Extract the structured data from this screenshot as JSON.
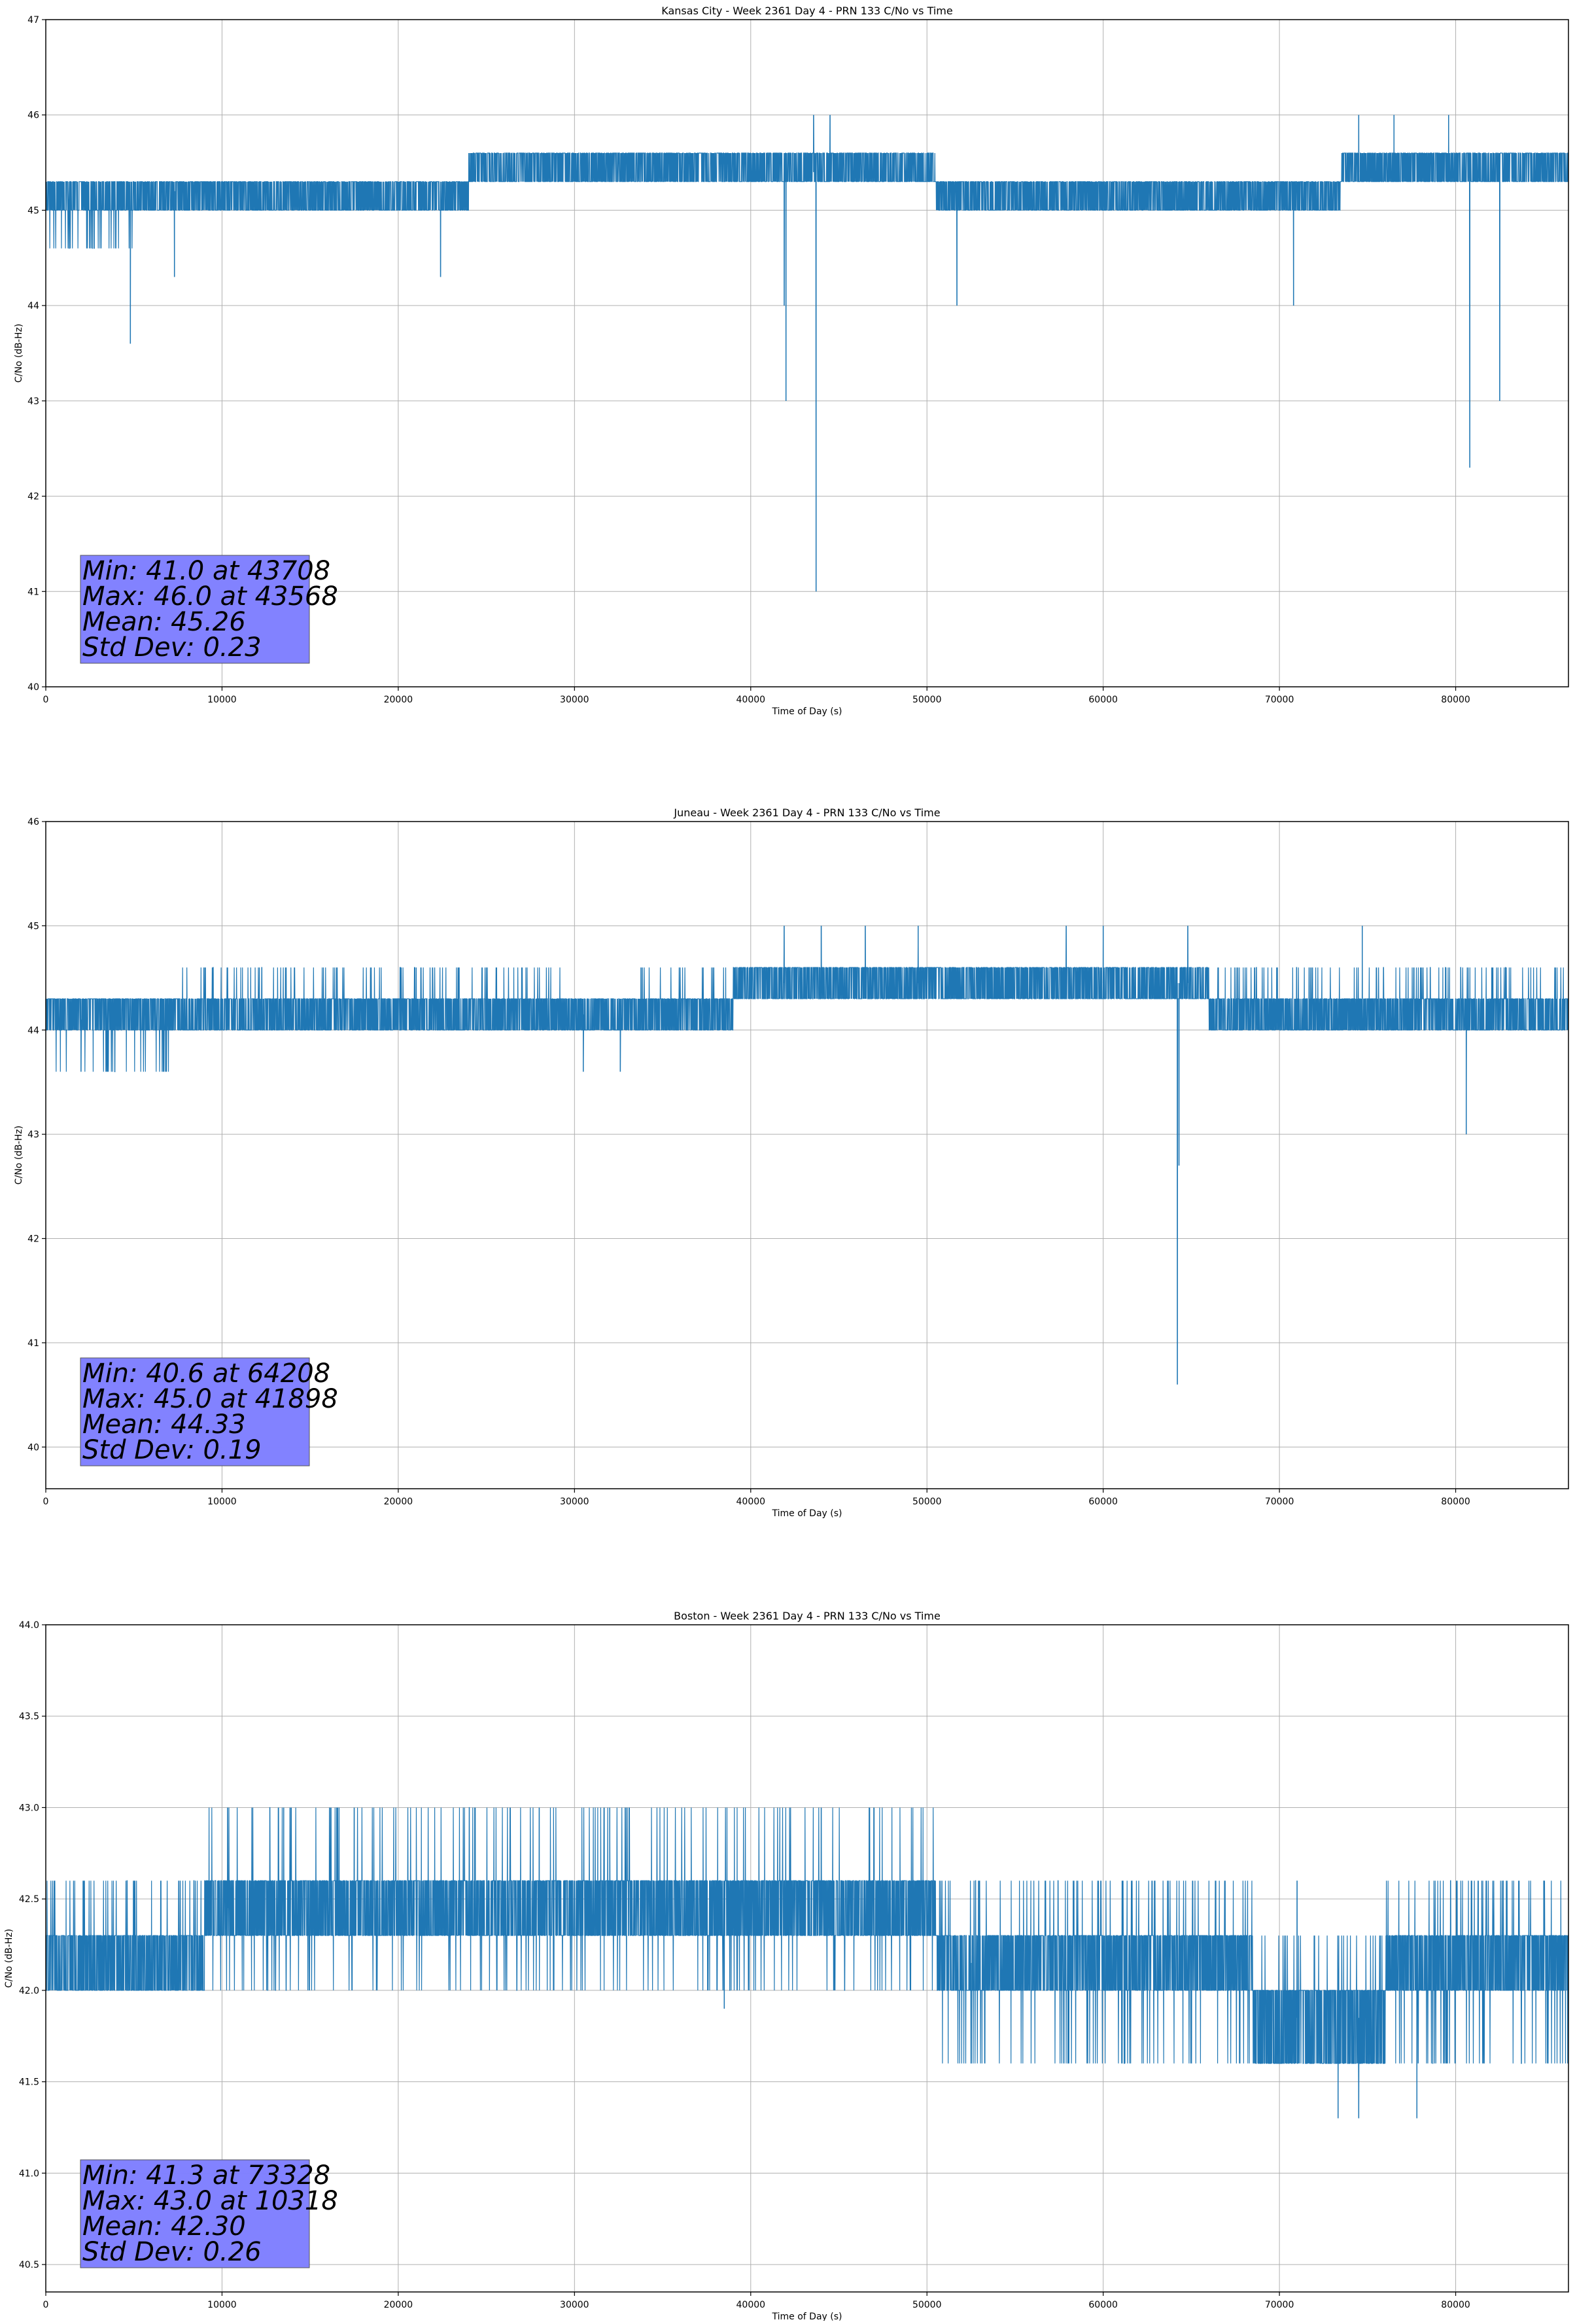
{
  "colors": {
    "series": "#1f77b4",
    "grid": "#b0b0b0",
    "stats_box": "#8080ff",
    "axes": "#000000"
  },
  "chart_data": [
    {
      "type": "line",
      "title": "Kansas City - Week 2361 Day 4 - PRN 133 C/No vs Time",
      "xlabel": "Time of Day (s)",
      "ylabel": "C/No (dB-Hz)",
      "xlim": [
        0,
        86400
      ],
      "ylim": [
        40,
        47
      ],
      "xticks": [
        0,
        10000,
        20000,
        30000,
        40000,
        50000,
        60000,
        70000,
        80000
      ],
      "yticks": [
        40,
        41,
        42,
        43,
        44,
        45,
        46,
        47
      ],
      "ytick_labels": [
        "40",
        "41",
        "42",
        "43",
        "44",
        "45",
        "46",
        "47"
      ],
      "grid": true,
      "series": [
        {
          "name": "PRN 133",
          "quantization": 0.3,
          "segments": [
            {
              "x0": 0,
              "x1": 5000,
              "base": 45.0,
              "levels": [
                44.6,
                45.0,
                45.3
              ]
            },
            {
              "x0": 5000,
              "x1": 24000,
              "base": 45.2,
              "levels": [
                45.0,
                45.3
              ]
            },
            {
              "x0": 24000,
              "x1": 50500,
              "base": 45.4,
              "levels": [
                45.3,
                45.6
              ]
            },
            {
              "x0": 50500,
              "x1": 73500,
              "base": 45.2,
              "levels": [
                45.0,
                45.3
              ]
            },
            {
              "x0": 73500,
              "x1": 86400,
              "base": 45.4,
              "levels": [
                45.3,
                45.6
              ]
            }
          ],
          "spikes": [
            [
              4800,
              43.6
            ],
            [
              7300,
              44.3
            ],
            [
              22400,
              44.3
            ],
            [
              42000,
              43.0
            ],
            [
              41900,
              44.0
            ],
            [
              43708,
              41.0
            ],
            [
              43568,
              46.0
            ],
            [
              44500,
              46.0
            ],
            [
              51700,
              44.0
            ],
            [
              70800,
              44.0
            ],
            [
              74500,
              46.0
            ],
            [
              76500,
              46.0
            ],
            [
              80800,
              42.3
            ],
            [
              82500,
              43.0
            ],
            [
              79600,
              46.0
            ]
          ]
        }
      ],
      "stats": {
        "min": "Min: 41.0 at 43708",
        "max": "Max: 46.0 at 43568",
        "mean": "Mean: 45.26",
        "std": "Std Dev: 0.23"
      },
      "legend": "none"
    },
    {
      "type": "line",
      "title": "Juneau - Week 2361 Day 4 - PRN 133 C/No vs Time",
      "xlabel": "Time of Day (s)",
      "ylabel": "C/No (dB-Hz)",
      "xlim": [
        0,
        86400
      ],
      "ylim": [
        39.6,
        46
      ],
      "xticks": [
        0,
        10000,
        20000,
        30000,
        40000,
        50000,
        60000,
        70000,
        80000
      ],
      "yticks": [
        40,
        41,
        42,
        43,
        44,
        45,
        46
      ],
      "ytick_labels": [
        "40",
        "41",
        "42",
        "43",
        "44",
        "45",
        "46"
      ],
      "grid": true,
      "series": [
        {
          "name": "PRN 133",
          "quantization": 0.3,
          "segments": [
            {
              "x0": 0,
              "x1": 7000,
              "base": 44.1,
              "levels": [
                43.6,
                44.0,
                44.3
              ]
            },
            {
              "x0": 7000,
              "x1": 29500,
              "base": 44.2,
              "levels": [
                44.0,
                44.3,
                44.6
              ]
            },
            {
              "x0": 29500,
              "x1": 33000,
              "base": 44.15,
              "levels": [
                44.0,
                44.3
              ]
            },
            {
              "x0": 33000,
              "x1": 39000,
              "base": 44.25,
              "levels": [
                44.0,
                44.3,
                44.6
              ]
            },
            {
              "x0": 39000,
              "x1": 66000,
              "base": 44.45,
              "levels": [
                44.3,
                44.6
              ]
            },
            {
              "x0": 66000,
              "x1": 86400,
              "base": 44.3,
              "levels": [
                44.0,
                44.3,
                44.6
              ]
            }
          ],
          "spikes": [
            [
              2000,
              43.6
            ],
            [
              6800,
              43.6
            ],
            [
              30500,
              43.6
            ],
            [
              32600,
              43.6
            ],
            [
              41898,
              45.0
            ],
            [
              44000,
              45.0
            ],
            [
              46500,
              45.0
            ],
            [
              49500,
              45.0
            ],
            [
              57900,
              45.0
            ],
            [
              60000,
              45.0
            ],
            [
              64208,
              40.6
            ],
            [
              64300,
              42.7
            ],
            [
              64800,
              45.0
            ],
            [
              74700,
              45.0
            ],
            [
              80600,
              43.0
            ]
          ]
        }
      ],
      "stats": {
        "min": "Min: 40.6 at 64208",
        "max": "Max: 45.0 at 41898",
        "mean": "Mean: 44.33",
        "std": "Std Dev: 0.19"
      },
      "legend": "none"
    },
    {
      "type": "line",
      "title": "Boston - Week 2361 Day 4 - PRN 133 C/No vs Time",
      "xlabel": "Time of Day (s)",
      "ylabel": "C/No (dB-Hz)",
      "xlim": [
        0,
        86400
      ],
      "ylim": [
        40.35,
        44.0
      ],
      "xticks": [
        0,
        10000,
        20000,
        30000,
        40000,
        50000,
        60000,
        70000,
        80000
      ],
      "yticks": [
        40.5,
        41.0,
        41.5,
        42.0,
        42.5,
        43.0,
        43.5,
        44.0
      ],
      "ytick_labels": [
        "40.5",
        "41.0",
        "41.5",
        "42.0",
        "42.5",
        "43.0",
        "43.5",
        "44.0"
      ],
      "grid": true,
      "series": [
        {
          "name": "PRN 133",
          "quantization": 0.3,
          "segments": [
            {
              "x0": 0,
              "x1": 9000,
              "base": 42.15,
              "levels": [
                42.0,
                42.3,
                42.6
              ]
            },
            {
              "x0": 9000,
              "x1": 50500,
              "base": 42.45,
              "levels": [
                42.0,
                42.3,
                42.6,
                43.0
              ]
            },
            {
              "x0": 50500,
              "x1": 68500,
              "base": 42.15,
              "levels": [
                41.6,
                42.0,
                42.3,
                42.6
              ]
            },
            {
              "x0": 68500,
              "x1": 76000,
              "base": 41.85,
              "levels": [
                41.6,
                42.0,
                42.3
              ]
            },
            {
              "x0": 76000,
              "x1": 86400,
              "base": 42.15,
              "levels": [
                41.6,
                42.0,
                42.3,
                42.6
              ]
            }
          ],
          "spikes": [
            [
              10318,
              43.0
            ],
            [
              13500,
              43.0
            ],
            [
              17500,
              43.0
            ],
            [
              28000,
              43.0
            ],
            [
              32000,
              43.0
            ],
            [
              38500,
              41.9
            ],
            [
              44000,
              43.0
            ],
            [
              52500,
              41.6
            ],
            [
              58000,
              41.6
            ],
            [
              73328,
              41.3
            ],
            [
              74500,
              41.3
            ],
            [
              77800,
              41.3
            ],
            [
              71000,
              42.6
            ],
            [
              82700,
              42.6
            ],
            [
              85000,
              42.6
            ]
          ]
        }
      ],
      "stats": {
        "min": "Min: 41.3 at 73328",
        "max": "Max: 43.0 at 10318",
        "mean": "Mean: 42.30",
        "std": "Std Dev: 0.26"
      },
      "legend": "none"
    }
  ]
}
